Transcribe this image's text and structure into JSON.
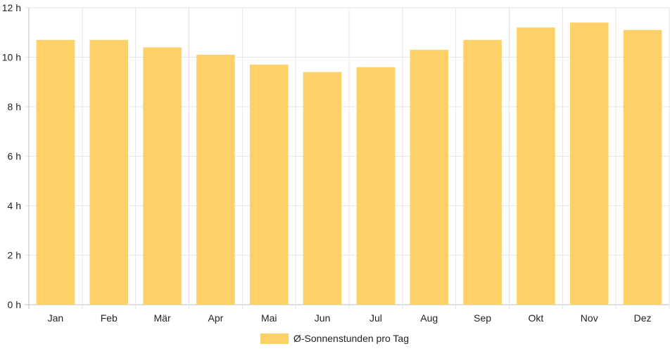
{
  "chart_data": {
    "type": "bar",
    "categories": [
      "Jan",
      "Feb",
      "Mär",
      "Apr",
      "Mai",
      "Jun",
      "Jul",
      "Aug",
      "Sep",
      "Okt",
      "Nov",
      "Dez"
    ],
    "series": [
      {
        "name": "Ø-Sonnenstunden pro Tag",
        "values": [
          10.7,
          10.7,
          10.4,
          10.1,
          9.7,
          9.4,
          9.6,
          10.3,
          10.7,
          11.2,
          11.4,
          11.1
        ],
        "color": "#fdd167"
      }
    ],
    "ylim": [
      0,
      12
    ],
    "yticks": [
      "0 h",
      "2 h",
      "4 h",
      "6 h",
      "8 h",
      "10 h",
      "12 h"
    ],
    "grid": true,
    "legend_position": "bottom"
  }
}
